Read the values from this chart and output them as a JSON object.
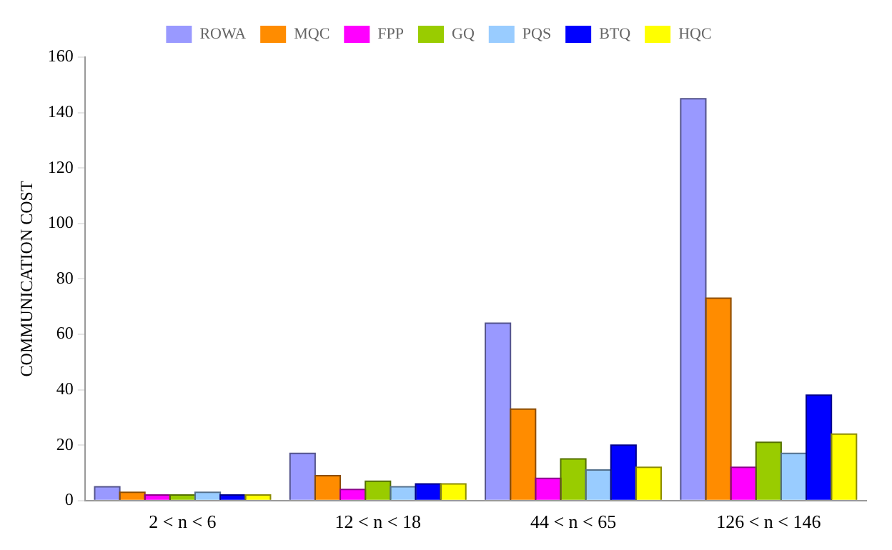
{
  "chart_data": {
    "type": "bar",
    "ylabel": "COMMUNICATION COST",
    "categories": [
      "2 < n < 6",
      "12 < n < 18",
      "44 < n < 65",
      "126 < n < 146"
    ],
    "series": [
      {
        "name": "ROWA",
        "color": "#9999ff",
        "values": [
          5,
          17,
          64,
          145
        ]
      },
      {
        "name": "MQC",
        "color": "#ff8c00",
        "values": [
          3,
          9,
          33,
          73
        ]
      },
      {
        "name": "FPP",
        "color": "#ff00ff",
        "values": [
          2,
          4,
          8,
          12
        ]
      },
      {
        "name": "GQ",
        "color": "#99cc00",
        "values": [
          2,
          7,
          15,
          21
        ]
      },
      {
        "name": "PQS",
        "color": "#99ccff",
        "values": [
          3,
          5,
          11,
          17
        ]
      },
      {
        "name": "BTQ",
        "color": "#0000ff",
        "values": [
          2,
          6,
          20,
          38
        ]
      },
      {
        "name": "HQC",
        "color": "#ffff00",
        "values": [
          2,
          6,
          12,
          24
        ]
      }
    ],
    "ylim": [
      0,
      160
    ],
    "yticks": [
      0,
      20,
      40,
      60,
      80,
      100,
      120,
      140,
      160
    ],
    "grid": false,
    "legend": "top"
  }
}
